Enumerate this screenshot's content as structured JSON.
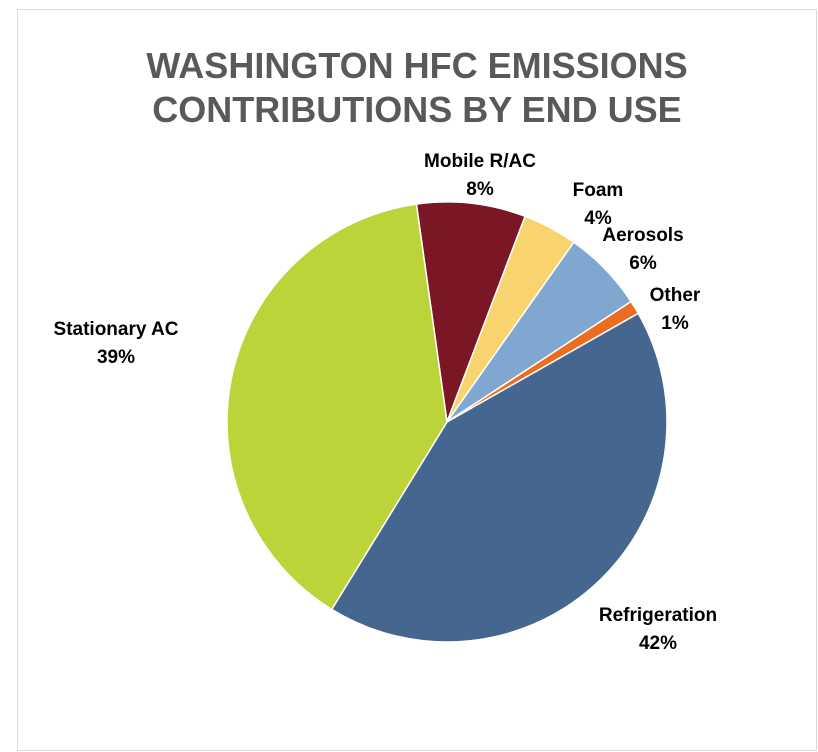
{
  "chart_data": {
    "type": "pie",
    "title_lines": [
      "WASHINGTON HFC EMISSIONS",
      "CONTRIBUTIONS BY END USE"
    ],
    "slices": [
      {
        "name": "Mobile R/AC",
        "value": 8,
        "label": "8%",
        "color": "#7b1624"
      },
      {
        "name": "Foam",
        "value": 4,
        "label": "4%",
        "color": "#f9d46e"
      },
      {
        "name": "Aerosols",
        "value": 6,
        "label": "6%",
        "color": "#7fa7cf"
      },
      {
        "name": "Other",
        "value": 1,
        "label": "1%",
        "color": "#ec6c20"
      },
      {
        "name": "Refrigeration",
        "value": 42,
        "label": "42%",
        "color": "#44668f"
      },
      {
        "name": "Stationary AC",
        "value": 39,
        "label": "39%",
        "color": "#bcd43a"
      }
    ],
    "legend": "none",
    "label_style": "category-and-percent"
  }
}
